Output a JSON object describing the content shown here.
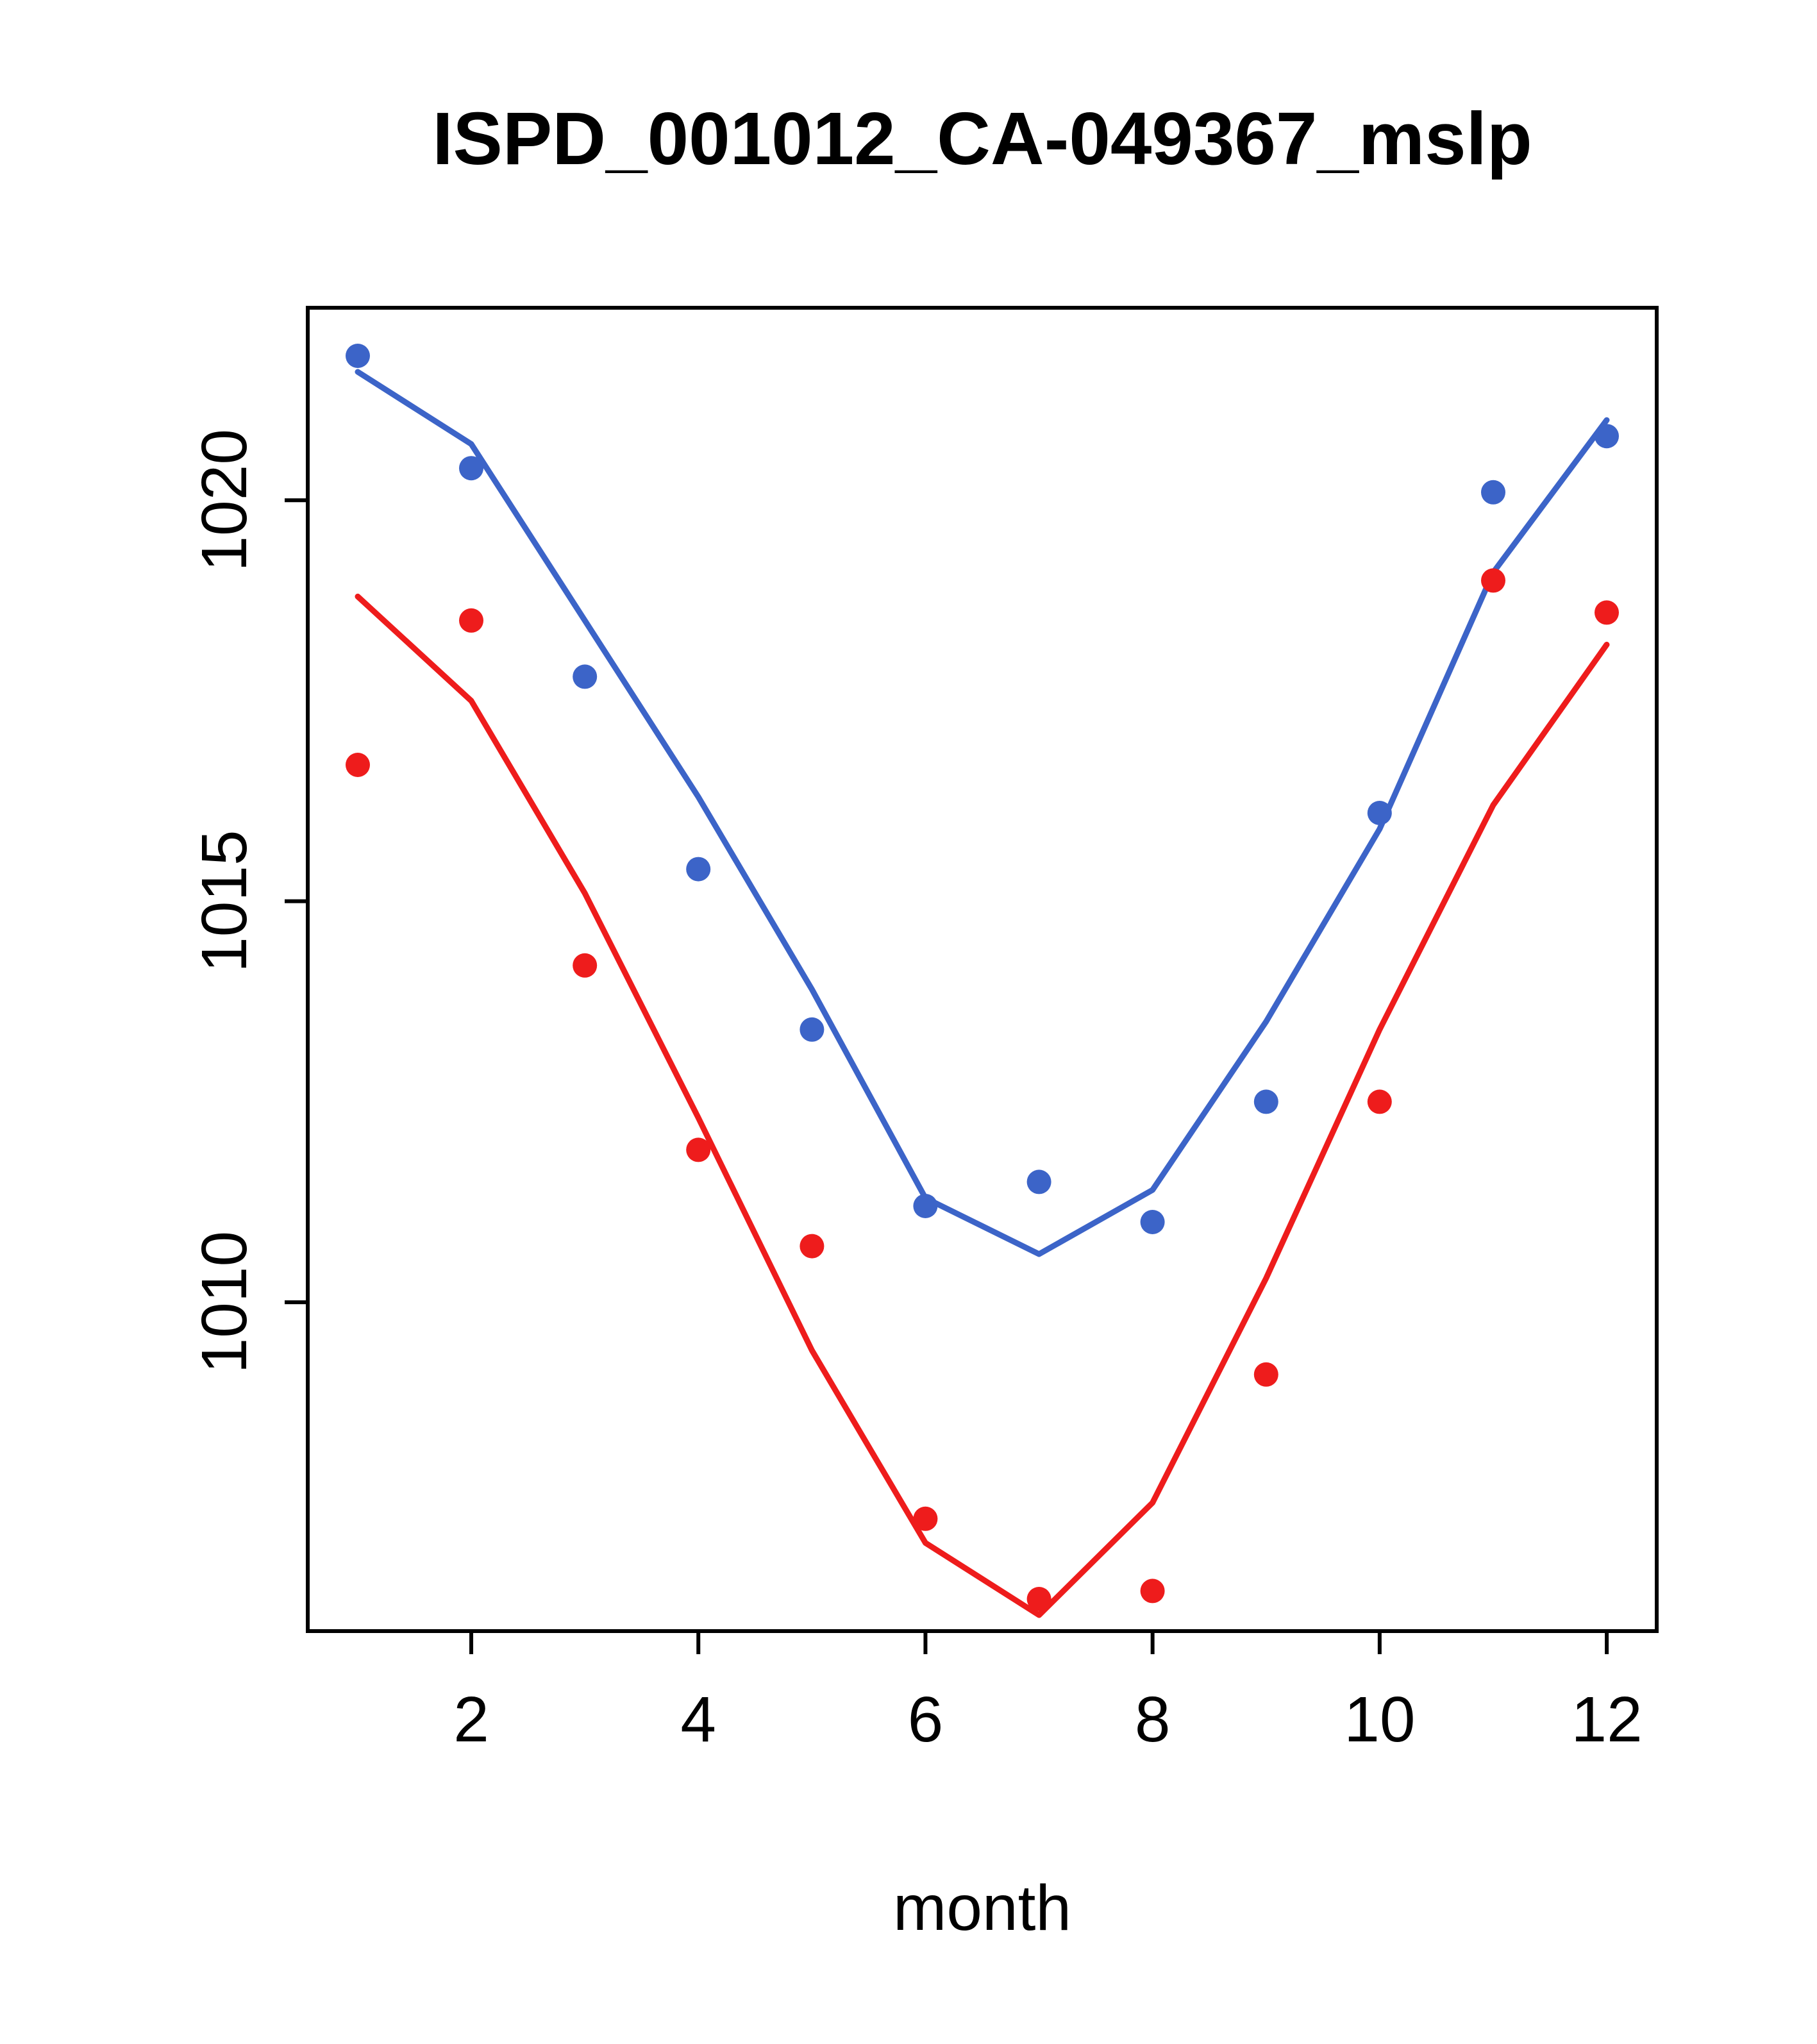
{
  "chart_data": {
    "type": "scatter",
    "title": "ISPD_001012_CA-049367_mslp",
    "xlabel": "month",
    "ylabel": "",
    "x": [
      1,
      2,
      3,
      4,
      5,
      6,
      7,
      8,
      9,
      10,
      11,
      12
    ],
    "xticks": [
      2,
      4,
      6,
      8,
      10,
      12
    ],
    "yticks": [
      1010,
      1015,
      1020
    ],
    "xlim": [
      0.56,
      12.44
    ],
    "ylim": [
      1005.9,
      1022.4
    ],
    "grid": false,
    "legend": "none",
    "colors": {
      "blue_series": "#3c64c8",
      "red_series": "#ee1c1c",
      "axis": "#000000",
      "background": "#ffffff"
    },
    "series": [
      {
        "name": "blue-line-fit",
        "kind": "line",
        "color": "#3c64c8",
        "values": [
          1021.6,
          1020.7,
          1018.5,
          1016.3,
          1013.9,
          1011.3,
          1010.6,
          1011.4,
          1013.5,
          1015.9,
          1019.1,
          1021.0
        ]
      },
      {
        "name": "red-line-fit",
        "kind": "line",
        "color": "#ee1c1c",
        "values": [
          1018.8,
          1017.5,
          1015.1,
          1012.3,
          1009.4,
          1007.0,
          1006.1,
          1007.5,
          1010.3,
          1013.4,
          1016.2,
          1018.2
        ]
      },
      {
        "name": "blue-points-obs",
        "kind": "points",
        "color": "#3c64c8",
        "values": [
          1021.8,
          1020.4,
          1017.8,
          1015.4,
          1013.4,
          1011.2,
          1011.5,
          1011.0,
          1012.5,
          1016.1,
          1020.1,
          1020.8
        ]
      },
      {
        "name": "red-points-obs",
        "kind": "points",
        "color": "#ee1c1c",
        "values": [
          1016.7,
          1018.5,
          1014.2,
          1011.9,
          1010.7,
          1007.3,
          1006.3,
          1006.4,
          1009.1,
          1012.5,
          1019.0,
          1018.6
        ]
      }
    ]
  }
}
